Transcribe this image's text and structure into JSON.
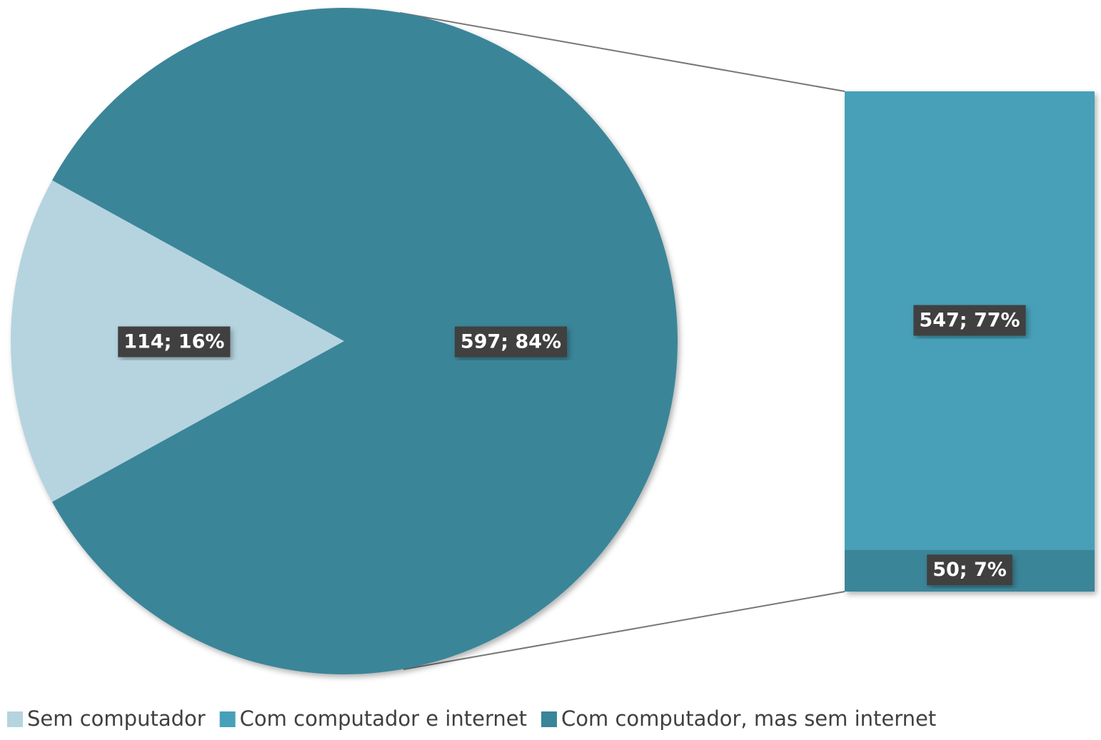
{
  "chart_data": {
    "type": "pie",
    "series": [
      {
        "name": "Sem computador",
        "color": "#b5d4df",
        "values": [
          114
        ],
        "value_labels": [
          "114; 16%"
        ]
      },
      {
        "name": "Com computador e internet",
        "color": "#47a0b8",
        "values": [
          547
        ],
        "value_labels": [
          "547; 77%"
        ]
      },
      {
        "name": "Com computador, mas sem internet",
        "color": "#3a8599",
        "values": [
          50
        ],
        "value_labels": [
          "50; 7%"
        ]
      }
    ],
    "other": {
      "values": [
        597
      ],
      "value_labels": [
        "597; 84%"
      ],
      "color": "#3a8599"
    },
    "legend": "bottom"
  }
}
